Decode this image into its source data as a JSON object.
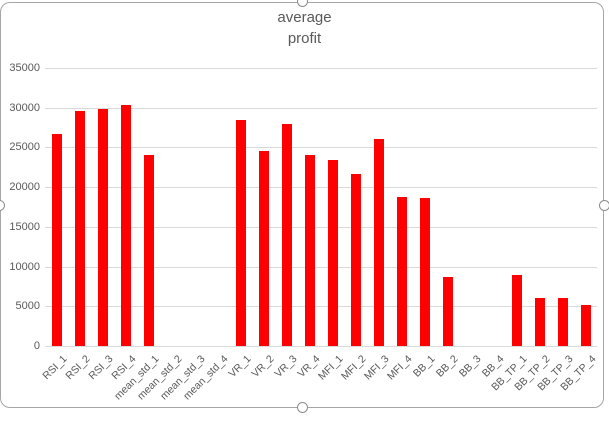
{
  "chart": {
    "title_lines": [
      "average",
      "profit"
    ]
  },
  "chart_data": {
    "type": "bar",
    "title": "average profit",
    "categories": [
      "RSI_1",
      "RSI_2",
      "RSI_3",
      "RSI_4",
      "mean_std_1",
      "mean_std_2",
      "mean_std_3",
      "mean_std_4",
      "VR_1",
      "VR_2",
      "VR_3",
      "VR_4",
      "MFI_1",
      "MFI_2",
      "MFI_3",
      "MFI_4",
      "BB_1",
      "BB_2",
      "BB_3",
      "BB_4",
      "BB_TP_1",
      "BB_TP_2",
      "BB_TP_3",
      "BB_TP_4"
    ],
    "values": [
      26700,
      29600,
      29900,
      30400,
      24000,
      0,
      0,
      0,
      28400,
      24600,
      27900,
      24100,
      23400,
      21700,
      26000,
      18800,
      18600,
      8700,
      0,
      0,
      8900,
      6000,
      6100,
      5100
    ],
    "xlabel": "",
    "ylabel": "",
    "ylim": [
      0,
      35000
    ],
    "yticks": [
      0,
      5000,
      10000,
      15000,
      20000,
      25000,
      30000,
      35000
    ],
    "grid": "horizontal",
    "legend": "none"
  },
  "colors": {
    "bar": "#FF0000",
    "gridline": "#D9D9D9",
    "axis_text": "#595959",
    "title_text": "#595959",
    "frame_border": "#A6A6A6",
    "handle_border": "#8C8C8C",
    "background": "#FFFFFF"
  },
  "selection": {
    "handle_positions": [
      "top",
      "bottom",
      "left",
      "right"
    ]
  }
}
